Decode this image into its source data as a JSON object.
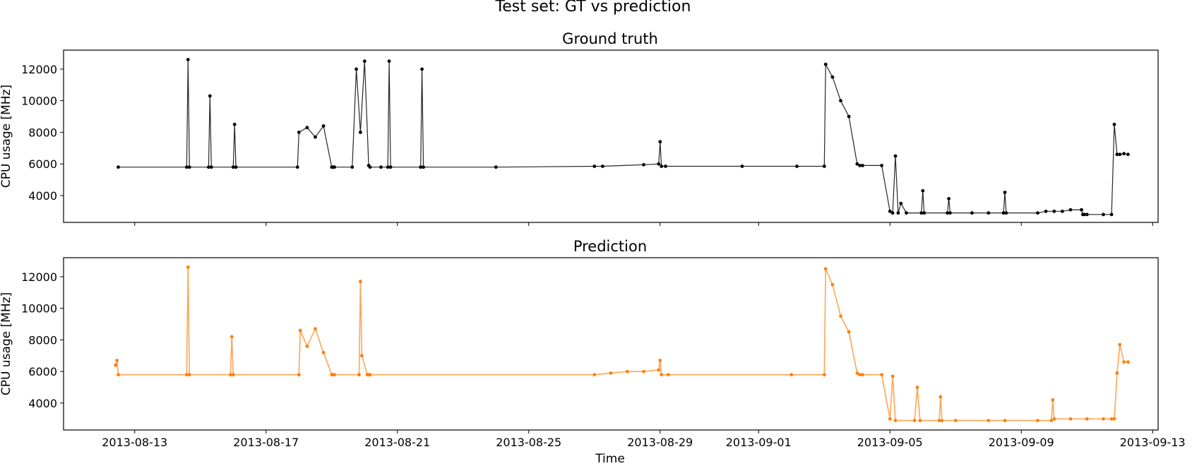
{
  "figure": {
    "suptitle": "Test set: GT vs prediction",
    "xlabel": "Time",
    "xtick_labels": [
      "2013-08-13",
      "2013-08-17",
      "2013-08-21",
      "2013-08-25",
      "2013-08-29",
      "2013-09-01",
      "2013-09-05",
      "2013-09-09",
      "2013-09-13"
    ]
  },
  "chart_data": [
    {
      "type": "line",
      "title": "Ground truth",
      "ylabel": "CPU usage [MHz]",
      "xlim": [
        "2013-08-10T20:00",
        "2013-09-13T04:00"
      ],
      "ylim": [
        2300,
        13200
      ],
      "xticks": [
        "2013-08-13",
        "2013-08-17",
        "2013-08-21",
        "2013-08-25",
        "2013-08-29",
        "2013-09-01",
        "2013-09-05",
        "2013-09-09",
        "2013-09-13"
      ],
      "yticks": [
        4000,
        6000,
        8000,
        10000,
        12000
      ],
      "color": "#000000",
      "marker": "dot",
      "series": [
        {
          "x": [
            "2013-08-12T12:00",
            "2013-08-14T14:00",
            "2013-08-14T15:00",
            "2013-08-14T16:00",
            "2013-08-15T06:00",
            "2013-08-15T07:00",
            "2013-08-15T08:00",
            "2013-08-16T00:00",
            "2013-08-16T01:00",
            "2013-08-16T02:00",
            "2013-08-17T23:00",
            "2013-08-18T00:00",
            "2013-08-18T06:00",
            "2013-08-18T12:00",
            "2013-08-18T18:00",
            "2013-08-19T00:00",
            "2013-08-19T01:00",
            "2013-08-19T02:00",
            "2013-08-19T15:00",
            "2013-08-19T18:00",
            "2013-08-19T21:00",
            "2013-08-20T00:00",
            "2013-08-20T03:00",
            "2013-08-20T04:00",
            "2013-08-20T12:00",
            "2013-08-20T17:00",
            "2013-08-20T18:00",
            "2013-08-20T19:00",
            "2013-08-21T17:00",
            "2013-08-21T18:00",
            "2013-08-21T19:00",
            "2013-08-24T00:00",
            "2013-08-27T00:00",
            "2013-08-27T06:00",
            "2013-08-28T12:00",
            "2013-08-28T23:00",
            "2013-08-29T00:00",
            "2013-08-29T01:00",
            "2013-08-29T04:00",
            "2013-08-31T12:00",
            "2013-09-02T04:00",
            "2013-09-03T00:00",
            "2013-09-03T01:00",
            "2013-09-03T06:00",
            "2013-09-03T12:00",
            "2013-09-03T18:00",
            "2013-09-04T00:00",
            "2013-09-04T02:00",
            "2013-09-04T04:00",
            "2013-09-04T18:00",
            "2013-09-05T00:00",
            "2013-09-05T02:00",
            "2013-09-05T04:00",
            "2013-09-05T06:00",
            "2013-09-05T08:00",
            "2013-09-05T12:00",
            "2013-09-05T23:00",
            "2013-09-06T00:00",
            "2013-09-06T01:00",
            "2013-09-06T18:00",
            "2013-09-06T19:00",
            "2013-09-06T20:00",
            "2013-09-07T12:00",
            "2013-09-08T00:00",
            "2013-09-08T11:00",
            "2013-09-08T12:00",
            "2013-09-08T13:00",
            "2013-09-09T12:00",
            "2013-09-09T18:00",
            "2013-09-10T00:00",
            "2013-09-10T06:00",
            "2013-09-10T12:00",
            "2013-09-10T20:00",
            "2013-09-10T21:00",
            "2013-09-10T22:00",
            "2013-09-11T00:00",
            "2013-09-11T12:00",
            "2013-09-11T18:00",
            "2013-09-11T20:00",
            "2013-09-11T22:00",
            "2013-09-12T00:00",
            "2013-09-12T03:00",
            "2013-09-12T06:00"
          ],
          "y": [
            5800,
            5800,
            12600,
            5800,
            5800,
            10300,
            5800,
            5800,
            8500,
            5800,
            5800,
            8000,
            8300,
            7700,
            8400,
            5800,
            5800,
            5800,
            5800,
            12000,
            8000,
            12500,
            5900,
            5800,
            5800,
            5800,
            12500,
            5800,
            5800,
            12000,
            5800,
            5800,
            5850,
            5850,
            5950,
            6000,
            7400,
            5850,
            5850,
            5850,
            5850,
            5850,
            12300,
            11500,
            10000,
            9000,
            6000,
            5900,
            5900,
            5900,
            3000,
            2900,
            6500,
            2900,
            3500,
            2900,
            2900,
            4300,
            2900,
            2900,
            3800,
            2900,
            2900,
            2900,
            2900,
            4200,
            2900,
            2900,
            3000,
            3000,
            3000,
            3100,
            3100,
            2800,
            2800,
            2800,
            2800,
            2800,
            8500,
            6600,
            6600,
            6650,
            6600
          ]
        }
      ]
    },
    {
      "type": "line",
      "title": "Prediction",
      "ylabel": "CPU usage [MHz]",
      "xlim": [
        "2013-08-10T20:00",
        "2013-09-13T04:00"
      ],
      "ylim": [
        2300,
        13200
      ],
      "xticks": [
        "2013-08-13",
        "2013-08-17",
        "2013-08-21",
        "2013-08-25",
        "2013-08-29",
        "2013-09-01",
        "2013-09-05",
        "2013-09-09",
        "2013-09-13"
      ],
      "yticks": [
        4000,
        6000,
        8000,
        10000,
        12000
      ],
      "color": "#ff7f0e",
      "marker": "dot",
      "series": [
        {
          "x": [
            "2013-08-12T10:00",
            "2013-08-12T11:00",
            "2013-08-12T12:00",
            "2013-08-14T14:00",
            "2013-08-14T15:00",
            "2013-08-14T16:00",
            "2013-08-15T22:00",
            "2013-08-15T23:00",
            "2013-08-16T00:00",
            "2013-08-18T00:00",
            "2013-08-18T01:00",
            "2013-08-18T06:00",
            "2013-08-18T12:00",
            "2013-08-18T18:00",
            "2013-08-19T00:00",
            "2013-08-19T01:00",
            "2013-08-19T02:00",
            "2013-08-19T20:00",
            "2013-08-19T21:00",
            "2013-08-19T22:00",
            "2013-08-20T02:00",
            "2013-08-20T03:00",
            "2013-08-20T04:00",
            "2013-08-27T00:00",
            "2013-08-27T12:00",
            "2013-08-28T00:00",
            "2013-08-28T12:00",
            "2013-08-28T23:00",
            "2013-08-29T00:00",
            "2013-08-29T01:00",
            "2013-08-29T06:00",
            "2013-09-02T00:00",
            "2013-09-03T00:00",
            "2013-09-03T01:00",
            "2013-09-03T06:00",
            "2013-09-03T12:00",
            "2013-09-03T18:00",
            "2013-09-04T00:00",
            "2013-09-04T02:00",
            "2013-09-04T04:00",
            "2013-09-04T18:00",
            "2013-09-05T00:00",
            "2013-09-05T02:00",
            "2013-09-05T04:00",
            "2013-09-05T18:00",
            "2013-09-05T20:00",
            "2013-09-05T22:00",
            "2013-09-06T12:00",
            "2013-09-06T13:00",
            "2013-09-06T14:00",
            "2013-09-07T00:00",
            "2013-09-08T00:00",
            "2013-09-08T12:00",
            "2013-09-09T12:00",
            "2013-09-09T22:00",
            "2013-09-09T23:00",
            "2013-09-10T00:00",
            "2013-09-10T12:00",
            "2013-09-11T00:00",
            "2013-09-11T12:00",
            "2013-09-11T18:00",
            "2013-09-11T20:00",
            "2013-09-11T22:00",
            "2013-09-12T00:00",
            "2013-09-12T03:00",
            "2013-09-12T06:00"
          ],
          "y": [
            6400,
            6700,
            5800,
            5800,
            12600,
            5800,
            5800,
            8200,
            5800,
            5800,
            8600,
            7600,
            8700,
            7200,
            5800,
            5800,
            5800,
            5800,
            11700,
            7000,
            5800,
            5800,
            5800,
            5800,
            5900,
            6000,
            6000,
            6100,
            6700,
            5800,
            5800,
            5800,
            5800,
            12500,
            11500,
            9500,
            8500,
            5900,
            5800,
            5800,
            5800,
            3000,
            5700,
            2900,
            2900,
            5000,
            2900,
            2900,
            4400,
            2900,
            2900,
            2900,
            2900,
            2900,
            2900,
            4200,
            3000,
            3000,
            3000,
            3000,
            3000,
            3000,
            5900,
            7700,
            6600,
            6600
          ]
        }
      ]
    }
  ]
}
